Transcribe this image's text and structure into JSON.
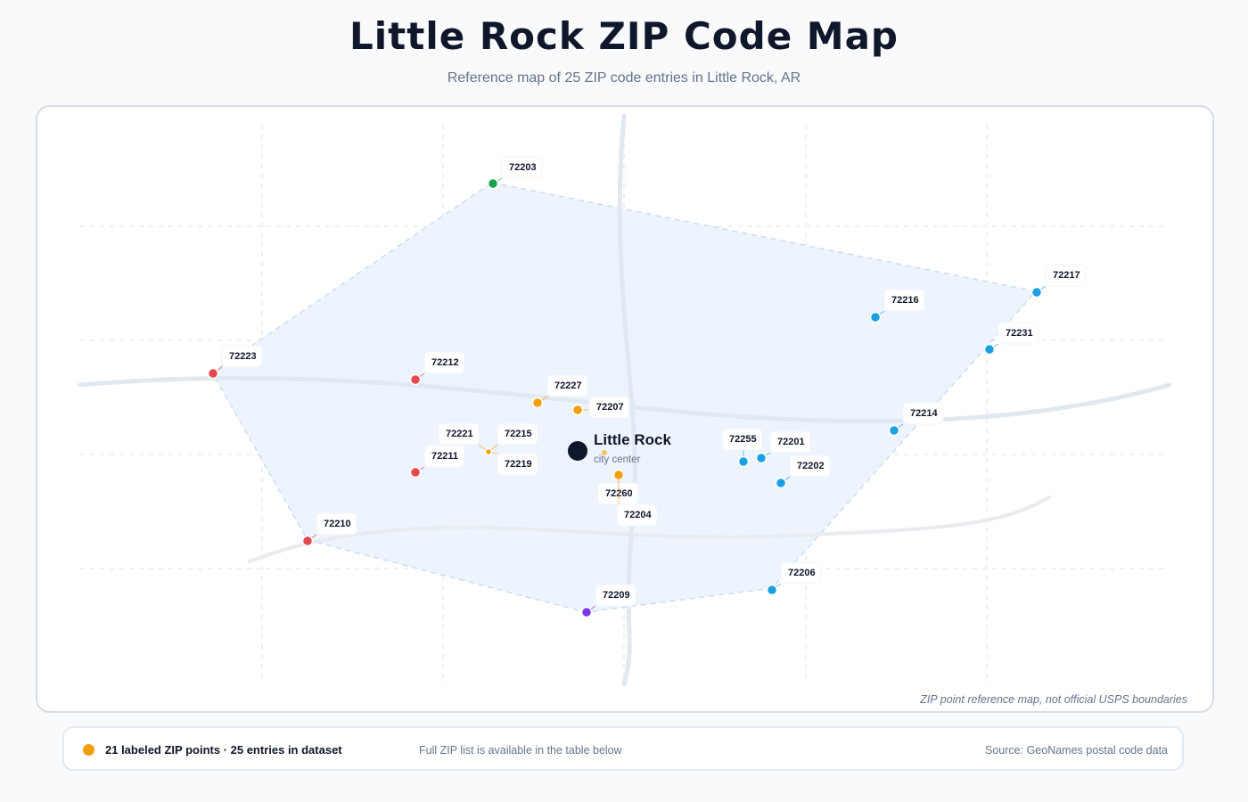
{
  "title": "Little Rock ZIP Code Map",
  "subtitle": "Reference map of 25 ZIP code entries in Little Rock, AR",
  "map": {
    "disclaimer": "ZIP point reference map, not official USPS boundaries",
    "center": {
      "name": "Little Rock",
      "caption": "city center"
    },
    "colors": {
      "red": "#e5484d",
      "orange": "#f59e0b",
      "blue": "#1ba1e2",
      "green": "#16a34a",
      "purple": "#7c3aed",
      "center": "#0f172a",
      "hull_fill": "#eef4fd",
      "hull_stroke": "#c9dcf5",
      "road": "#e2e8f0",
      "grid": "#e2e8f0"
    },
    "zip_points": [
      {
        "zip": "72203",
        "color": "green"
      },
      {
        "zip": "72217",
        "color": "blue"
      },
      {
        "zip": "72216",
        "color": "blue"
      },
      {
        "zip": "72231",
        "color": "blue"
      },
      {
        "zip": "72223",
        "color": "red"
      },
      {
        "zip": "72212",
        "color": "red"
      },
      {
        "zip": "72227",
        "color": "orange"
      },
      {
        "zip": "72207",
        "color": "orange"
      },
      {
        "zip": "72214",
        "color": "blue"
      },
      {
        "zip": "72221",
        "color": "orange"
      },
      {
        "zip": "72215",
        "color": "orange"
      },
      {
        "zip": "72219",
        "color": "orange"
      },
      {
        "zip": "72211",
        "color": "red"
      },
      {
        "zip": "72255",
        "color": "blue"
      },
      {
        "zip": "72201",
        "color": "blue"
      },
      {
        "zip": "72202",
        "color": "blue"
      },
      {
        "zip": "72260",
        "color": "orange"
      },
      {
        "zip": "72204",
        "color": "orange"
      },
      {
        "zip": "72210",
        "color": "red"
      },
      {
        "zip": "72206",
        "color": "blue"
      },
      {
        "zip": "72209",
        "color": "purple"
      }
    ]
  },
  "footer": {
    "count_text": "21 labeled ZIP points · 25 entries in dataset",
    "note": "Full ZIP list is available in the table below",
    "source": "Source: GeoNames postal code data"
  }
}
